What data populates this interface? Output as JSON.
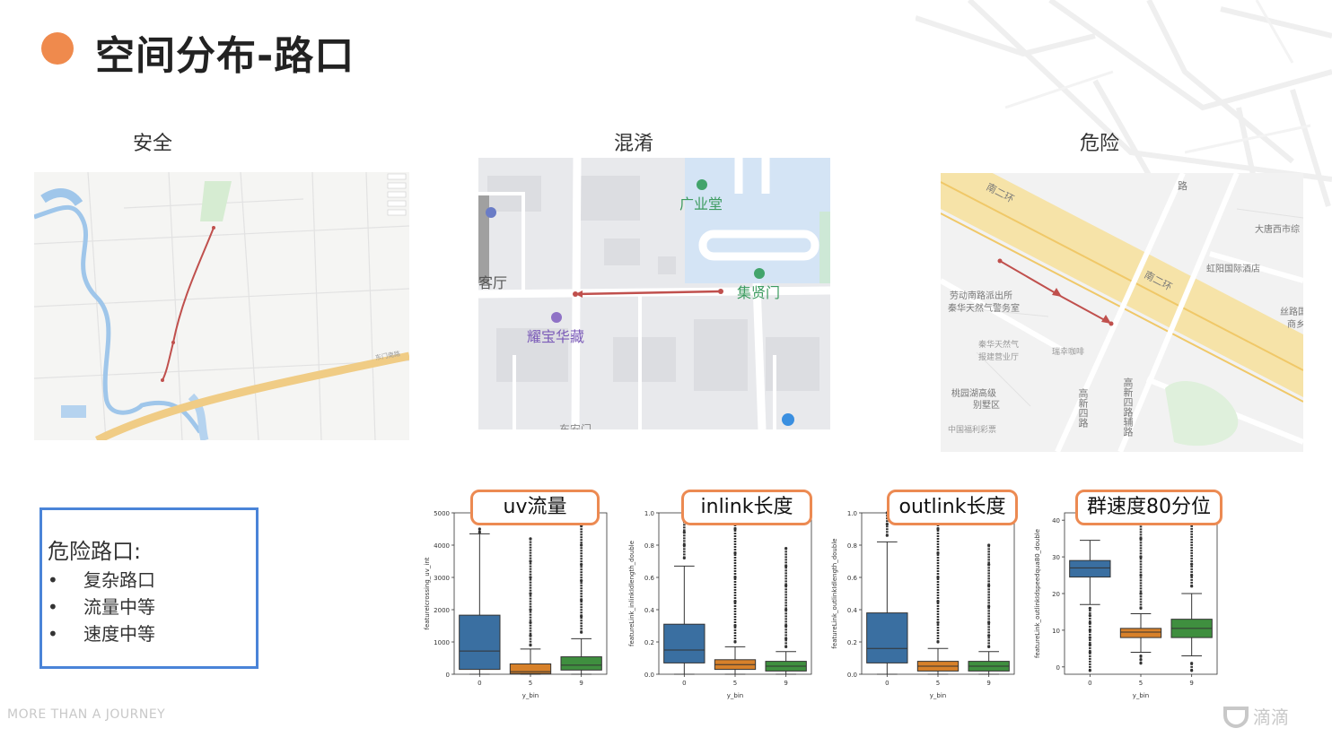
{
  "slide": {
    "title": "空间分布-路口",
    "footer_tagline": "MORE THAN A JOURNEY",
    "brand": "滴滴",
    "colors": {
      "accent": "#ef8a4d",
      "legend_border": "#4a84d8",
      "tag_border": "#ec8a52",
      "route": "#c0504d"
    }
  },
  "maps": [
    {
      "label": "安全",
      "pois": [
        "东门南路"
      ]
    },
    {
      "label": "混淆",
      "pois": [
        "广业堂",
        "客厅",
        "集贤门",
        "耀宝华藏",
        "东安门"
      ]
    },
    {
      "label": "危险",
      "pois": [
        "南二环",
        "劳动南路派出所",
        "秦华天然气警务室",
        "秦华天然气",
        "报建营业厅",
        "瑞幸咖啡",
        "桃园湖高级",
        "别墅区",
        "中国福利彩票",
        "大唐西市综",
        "虹阳国际酒店",
        "丝路国",
        "商乡",
        "路",
        "南二环",
        "高新四路",
        "高新四路辅路"
      ]
    }
  ],
  "legend": {
    "title": "危险路口:",
    "items": [
      "复杂路口",
      "流量中等",
      "速度中等"
    ]
  },
  "chart_data": [
    {
      "type": "box",
      "tag": "uv流量",
      "xlabel": "y_bin",
      "ylabel": "featureIcrossing_uv_int",
      "categories": [
        "0",
        "5",
        "9"
      ],
      "yticks": [
        "0",
        "1000",
        "2000",
        "3000",
        "4000",
        "5000"
      ],
      "ylim": [
        0,
        5000
      ],
      "series": [
        {
          "category": "0",
          "color": "#3a6fa1",
          "whisker_low": 0,
          "q1": 150,
          "median": 720,
          "q3": 1830,
          "whisker_high": 4350,
          "outliers_high": [
            4400,
            4500
          ]
        },
        {
          "category": "5",
          "color": "#d7812a",
          "whisker_low": 0,
          "q1": 20,
          "median": 80,
          "q3": 320,
          "whisker_high": 780,
          "outliers_high": [
            900,
            1200,
            1600,
            2000,
            2500,
            3000,
            3500,
            4200
          ]
        },
        {
          "category": "9",
          "color": "#3f8f3f",
          "whisker_low": 0,
          "q1": 130,
          "median": 280,
          "q3": 540,
          "whisker_high": 1100,
          "outliers_high": [
            1300,
            1800,
            2300,
            2900,
            3400,
            4000,
            4600
          ]
        }
      ]
    },
    {
      "type": "box",
      "tag": "inlink长度",
      "xlabel": "y_bin",
      "ylabel": "featureLink_inlinkIdlength_double",
      "categories": [
        "0",
        "5",
        "9"
      ],
      "yticks": [
        "0.0",
        "0.2",
        "0.4",
        "0.6",
        "0.8",
        "1.0"
      ],
      "ylim": [
        0,
        1
      ],
      "series": [
        {
          "category": "0",
          "color": "#3a6fa1",
          "whisker_low": 0,
          "q1": 0.07,
          "median": 0.15,
          "q3": 0.31,
          "whisker_high": 0.67,
          "outliers_high": [
            0.72,
            0.8,
            0.88,
            0.95,
            1.0
          ]
        },
        {
          "category": "5",
          "color": "#d7812a",
          "whisker_low": 0,
          "q1": 0.03,
          "median": 0.06,
          "q3": 0.09,
          "whisker_high": 0.17,
          "outliers_high": [
            0.2,
            0.3,
            0.45,
            0.6,
            0.75,
            0.9,
            0.98
          ]
        },
        {
          "category": "9",
          "color": "#3f8f3f",
          "whisker_low": 0,
          "q1": 0.02,
          "median": 0.05,
          "q3": 0.08,
          "whisker_high": 0.14,
          "outliers_high": [
            0.17,
            0.22,
            0.3,
            0.4,
            0.55,
            0.67,
            0.78
          ]
        }
      ]
    },
    {
      "type": "box",
      "tag": "outlink长度",
      "xlabel": "y_bin",
      "ylabel": "featureLink_outlinkIdlength_double",
      "categories": [
        "0",
        "5",
        "9"
      ],
      "yticks": [
        "0.0",
        "0.2",
        "0.4",
        "0.6",
        "0.8",
        "1.0"
      ],
      "ylim": [
        0,
        1
      ],
      "series": [
        {
          "category": "0",
          "color": "#3a6fa1",
          "whisker_low": 0,
          "q1": 0.07,
          "median": 0.16,
          "q3": 0.38,
          "whisker_high": 0.82,
          "outliers_high": [
            0.86,
            0.93,
            1.0
          ]
        },
        {
          "category": "5",
          "color": "#d7812a",
          "whisker_low": 0,
          "q1": 0.02,
          "median": 0.05,
          "q3": 0.08,
          "whisker_high": 0.16,
          "outliers_high": [
            0.2,
            0.32,
            0.45,
            0.6,
            0.75,
            0.9,
            0.98
          ]
        },
        {
          "category": "9",
          "color": "#3f8f3f",
          "whisker_low": 0,
          "q1": 0.02,
          "median": 0.05,
          "q3": 0.08,
          "whisker_high": 0.14,
          "outliers_high": [
            0.17,
            0.24,
            0.32,
            0.42,
            0.55,
            0.68,
            0.8
          ]
        }
      ]
    },
    {
      "type": "box",
      "tag": "群速度80分位",
      "xlabel": "y_bin",
      "ylabel": "featureLink_outlinkIdspeedqua80_double",
      "categories": [
        "0",
        "5",
        "9"
      ],
      "yticks": [
        "0",
        "10",
        "20",
        "30",
        "40"
      ],
      "ylim": [
        -2,
        42
      ],
      "series": [
        {
          "category": "0",
          "color": "#3a6fa1",
          "whisker_low": 17,
          "q1": 24.5,
          "median": 27,
          "q3": 29,
          "whisker_high": 34.5,
          "outliers_low": [
            4,
            6,
            8,
            10,
            12,
            14,
            16,
            -1
          ]
        },
        {
          "category": "5",
          "color": "#d7812a",
          "whisker_low": 4,
          "q1": 8,
          "median": 9.5,
          "q3": 10.5,
          "whisker_high": 14.5,
          "outliers_low": [
            1,
            2,
            3
          ],
          "outliers_high": [
            16,
            20,
            25,
            30,
            35,
            40
          ]
        },
        {
          "category": "9",
          "color": "#3f8f3f",
          "whisker_low": 3,
          "q1": 8,
          "median": 10.5,
          "q3": 13,
          "whisker_high": 20,
          "outliers_low": [
            -1,
            1
          ],
          "outliers_high": [
            22,
            25,
            28,
            39
          ]
        }
      ]
    }
  ]
}
